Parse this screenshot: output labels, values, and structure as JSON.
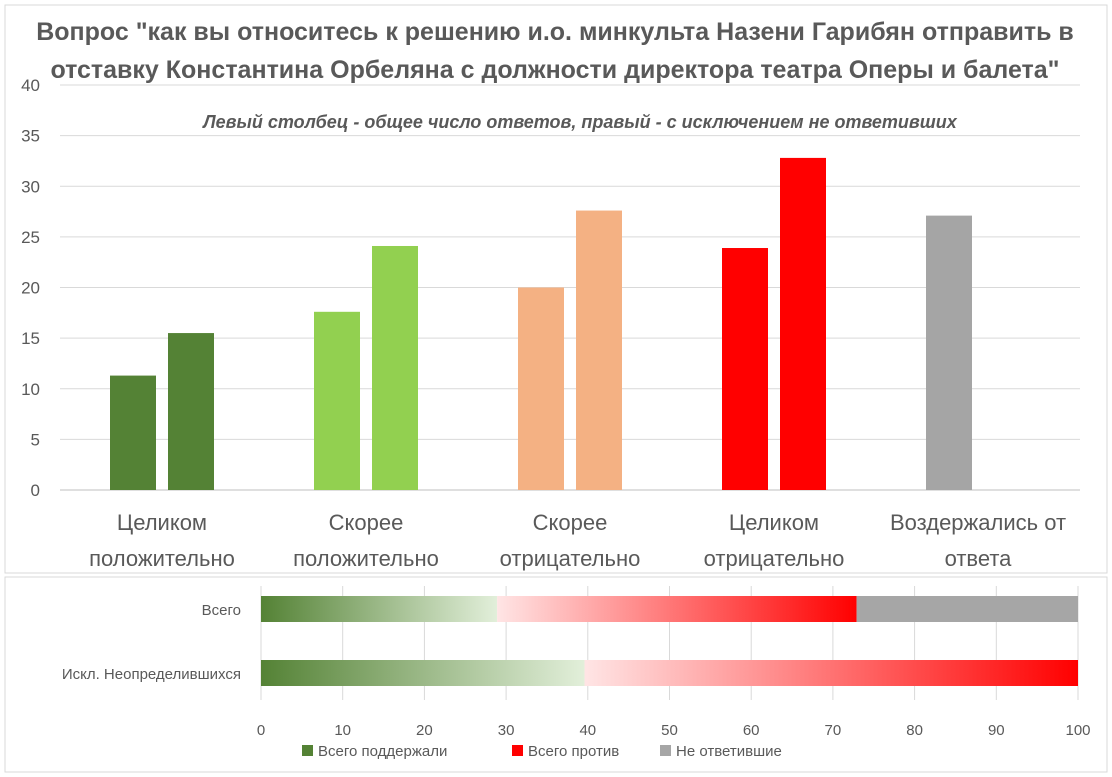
{
  "chart_data": [
    {
      "type": "bar",
      "title": "Вопрос \"как вы относитесь к решению и.о. минкульта Назени Гарибян отправить в отставку Константина Орбеляна с должности директора театра Оперы и балета\"",
      "title_lines": [
        "Вопрос \"как вы относитесь к решению и.о. минкульта Назени Гарибян отправить в",
        "отставку Константина Орбеляна с должности директора театра Оперы и балета\""
      ],
      "subtitle": "Левый столбец - общее число ответов, правый - с исключением не ответивших",
      "categories": [
        [
          "Целиком",
          "положительно"
        ],
        [
          "Скорее",
          "положительно"
        ],
        [
          "Скорее",
          "отрицательно"
        ],
        [
          "Целиком",
          "отрицательно"
        ],
        [
          "Воздержались от",
          "ответа"
        ]
      ],
      "series": [
        {
          "values": [
            11.3,
            17.6,
            20.0,
            23.9,
            27.1
          ]
        },
        {
          "values": [
            15.5,
            24.1,
            27.6,
            32.8,
            null
          ]
        }
      ],
      "colors": [
        "#548235",
        "#92d050",
        "#f4b183",
        "#ff0000",
        "#a5a5a5"
      ],
      "ylim": [
        0,
        40
      ],
      "yticks": [
        "0",
        "5",
        "10",
        "15",
        "20",
        "25",
        "30",
        "35",
        "40"
      ],
      "grid": true
    },
    {
      "type": "bar",
      "orientation": "horizontal-stacked",
      "categories": [
        "Всего",
        "Искл. Неопределившихся"
      ],
      "series": [
        {
          "name": "Всего поддержали",
          "values": [
            28.9,
            39.6
          ],
          "color": "#548235"
        },
        {
          "name": "Всего против",
          "values": [
            44.0,
            60.4
          ],
          "color": "#ff0000"
        },
        {
          "name": "Не ответившие",
          "values": [
            27.1,
            0
          ],
          "color": "#a6a6a6"
        }
      ],
      "xlim": [
        0,
        100
      ],
      "xticks": [
        "0",
        "10",
        "20",
        "30",
        "40",
        "50",
        "60",
        "70",
        "80",
        "90",
        "100"
      ],
      "legend": "bottom"
    }
  ]
}
